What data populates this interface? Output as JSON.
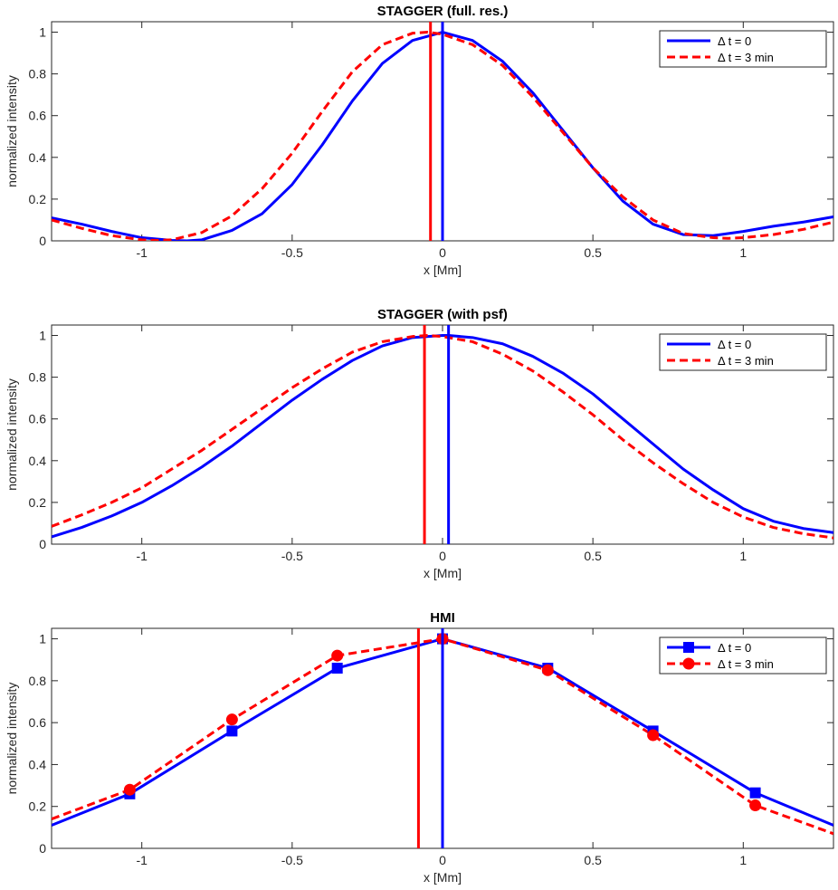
{
  "chart_data": [
    {
      "type": "line",
      "title": "STAGGER (full. res.)",
      "xlabel": "x [Mm]",
      "ylabel": "normalized intensity",
      "xlim": [
        -1.3,
        1.3
      ],
      "ylim": [
        0,
        1.05
      ],
      "xticks": [
        -1,
        -0.5,
        0,
        0.5,
        1
      ],
      "xtick_labels": [
        "-1",
        "-0.5",
        "0",
        "0.5",
        "1"
      ],
      "yticks": [
        0,
        0.2,
        0.4,
        0.6,
        0.8,
        1
      ],
      "ytick_labels": [
        "0",
        "0.2",
        "0.4",
        "0.6",
        "0.8",
        "1"
      ],
      "legend": "top-right",
      "series": [
        {
          "name": "Δ t = 0",
          "color": "#0000ff",
          "style": "solid",
          "x": [
            -1.3,
            -1.2,
            -1.1,
            -1.0,
            -0.9,
            -0.85,
            -0.8,
            -0.7,
            -0.6,
            -0.5,
            -0.4,
            -0.3,
            -0.2,
            -0.1,
            0.0,
            0.1,
            0.2,
            0.3,
            0.4,
            0.5,
            0.6,
            0.7,
            0.8,
            0.9,
            1.0,
            1.1,
            1.2,
            1.3
          ],
          "y": [
            0.11,
            0.08,
            0.045,
            0.015,
            0.002,
            0.0,
            0.005,
            0.05,
            0.13,
            0.27,
            0.46,
            0.67,
            0.85,
            0.96,
            1.0,
            0.96,
            0.86,
            0.71,
            0.53,
            0.35,
            0.19,
            0.08,
            0.03,
            0.025,
            0.045,
            0.07,
            0.09,
            0.115
          ]
        },
        {
          "name": "Δ t = 3 min",
          "color": "#ff0000",
          "style": "dashed",
          "x": [
            -1.3,
            -1.2,
            -1.1,
            -1.0,
            -0.95,
            -0.9,
            -0.8,
            -0.7,
            -0.6,
            -0.5,
            -0.4,
            -0.3,
            -0.2,
            -0.1,
            -0.05,
            0.0,
            0.1,
            0.2,
            0.3,
            0.4,
            0.5,
            0.6,
            0.7,
            0.8,
            0.9,
            0.95,
            1.0,
            1.1,
            1.2,
            1.3
          ],
          "y": [
            0.1,
            0.06,
            0.025,
            0.005,
            0.002,
            0.005,
            0.04,
            0.12,
            0.25,
            0.42,
            0.62,
            0.81,
            0.94,
            0.995,
            1.0,
            0.99,
            0.94,
            0.84,
            0.69,
            0.52,
            0.35,
            0.21,
            0.1,
            0.035,
            0.015,
            0.012,
            0.015,
            0.03,
            0.055,
            0.09
          ]
        }
      ],
      "vlines": [
        {
          "x": -0.04,
          "color": "#ff0000"
        },
        {
          "x": 0.0,
          "color": "#0000ff"
        }
      ]
    },
    {
      "type": "line",
      "title": "STAGGER (with psf)",
      "xlabel": "x [Mm]",
      "ylabel": "normalized intensity",
      "xlim": [
        -1.3,
        1.3
      ],
      "ylim": [
        0,
        1.05
      ],
      "xticks": [
        -1,
        -0.5,
        0,
        0.5,
        1
      ],
      "xtick_labels": [
        "-1",
        "-0.5",
        "0",
        "0.5",
        "1"
      ],
      "yticks": [
        0,
        0.2,
        0.4,
        0.6,
        0.8,
        1
      ],
      "ytick_labels": [
        "0",
        "0.2",
        "0.4",
        "0.6",
        "0.8",
        "1"
      ],
      "legend": "top-right",
      "series": [
        {
          "name": "Δ t = 0",
          "color": "#0000ff",
          "style": "solid",
          "x": [
            -1.3,
            -1.2,
            -1.1,
            -1.0,
            -0.9,
            -0.8,
            -0.7,
            -0.6,
            -0.5,
            -0.4,
            -0.3,
            -0.2,
            -0.1,
            0.0,
            0.02,
            0.1,
            0.2,
            0.3,
            0.4,
            0.5,
            0.6,
            0.7,
            0.8,
            0.9,
            1.0,
            1.1,
            1.2,
            1.3
          ],
          "y": [
            0.035,
            0.08,
            0.135,
            0.2,
            0.28,
            0.37,
            0.47,
            0.58,
            0.69,
            0.79,
            0.88,
            0.95,
            0.99,
            1.0,
            1.0,
            0.99,
            0.96,
            0.9,
            0.82,
            0.72,
            0.6,
            0.48,
            0.36,
            0.26,
            0.17,
            0.11,
            0.075,
            0.055
          ]
        },
        {
          "name": "Δ t = 3 min",
          "color": "#ff0000",
          "style": "dashed",
          "x": [
            -1.3,
            -1.2,
            -1.1,
            -1.0,
            -0.9,
            -0.8,
            -0.7,
            -0.6,
            -0.5,
            -0.4,
            -0.3,
            -0.2,
            -0.1,
            -0.05,
            0.0,
            0.1,
            0.2,
            0.3,
            0.4,
            0.5,
            0.6,
            0.7,
            0.8,
            0.9,
            1.0,
            1.1,
            1.2,
            1.3
          ],
          "y": [
            0.085,
            0.14,
            0.2,
            0.27,
            0.36,
            0.45,
            0.55,
            0.65,
            0.75,
            0.84,
            0.92,
            0.97,
            0.995,
            1.0,
            0.995,
            0.97,
            0.91,
            0.83,
            0.73,
            0.62,
            0.5,
            0.39,
            0.29,
            0.2,
            0.13,
            0.08,
            0.05,
            0.03
          ]
        }
      ],
      "vlines": [
        {
          "x": -0.06,
          "color": "#ff0000"
        },
        {
          "x": 0.02,
          "color": "#0000ff"
        }
      ]
    },
    {
      "type": "line",
      "title": "HMI",
      "xlabel": "x [Mm]",
      "ylabel": "normalized intensity",
      "xlim": [
        -1.3,
        1.3
      ],
      "ylim": [
        0,
        1.05
      ],
      "xticks": [
        -1,
        -0.5,
        0,
        0.5,
        1
      ],
      "xtick_labels": [
        "-1",
        "-0.5",
        "0",
        "0.5",
        "1"
      ],
      "yticks": [
        0,
        0.2,
        0.4,
        0.6,
        0.8,
        1
      ],
      "ytick_labels": [
        "0",
        "0.2",
        "0.4",
        "0.6",
        "0.8",
        "1"
      ],
      "legend": "top-right",
      "series": [
        {
          "name": "Δ t = 0",
          "color": "#0000ff",
          "style": "solid",
          "marker": "square",
          "x": [
            -1.3,
            -1.04,
            -0.7,
            -0.35,
            0.0,
            0.35,
            0.7,
            1.04,
            1.3
          ],
          "y": [
            0.11,
            0.26,
            0.56,
            0.86,
            1.0,
            0.86,
            0.56,
            0.265,
            0.11
          ],
          "marker_x": [
            -1.04,
            -0.7,
            -0.35,
            0.0,
            0.35,
            0.7,
            1.04
          ]
        },
        {
          "name": "Δ t = 3 min",
          "color": "#ff0000",
          "style": "dashed",
          "marker": "circle",
          "x": [
            -1.3,
            -1.04,
            -0.7,
            -0.35,
            0.0,
            0.35,
            0.7,
            1.04,
            1.3
          ],
          "y": [
            0.14,
            0.28,
            0.615,
            0.92,
            1.0,
            0.85,
            0.54,
            0.205,
            0.07
          ],
          "marker_x": [
            -1.04,
            -0.7,
            -0.35,
            0.0,
            0.35,
            0.7,
            1.04
          ]
        }
      ],
      "vlines": [
        {
          "x": -0.08,
          "color": "#ff0000"
        },
        {
          "x": 0.0,
          "color": "#0000ff"
        }
      ]
    }
  ]
}
